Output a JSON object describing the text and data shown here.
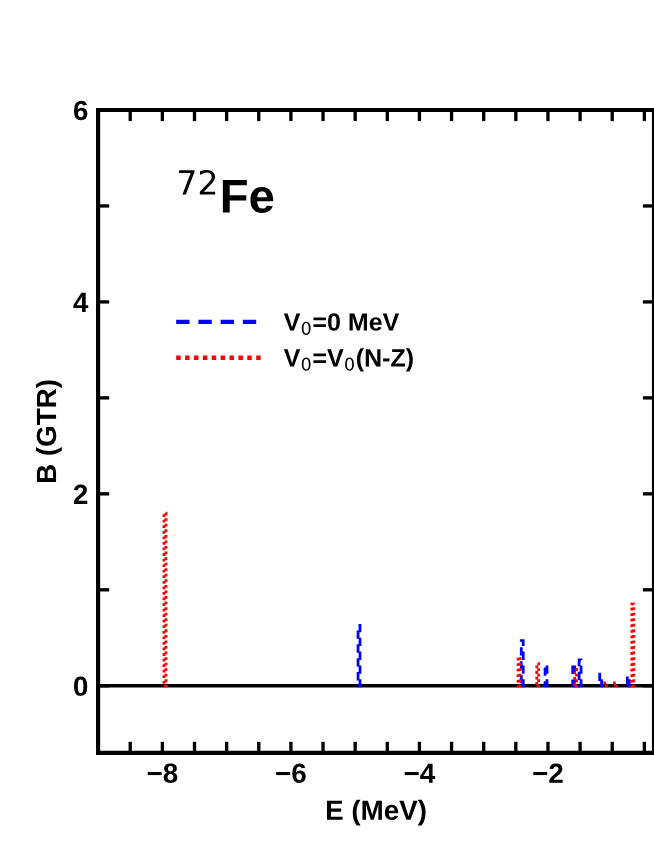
{
  "chart_data": {
    "type": "bar",
    "xlabel": "E (MeV)",
    "ylabel": "B (GTR)",
    "annotations": [
      "$^{72}$Fe"
    ],
    "xlim": [
      -9,
      -0.35
    ],
    "ylim": [
      -0.7,
      6
    ],
    "xticks": [
      {
        "value": -8.5,
        "label": null
      },
      -8,
      {
        "value": -7.5,
        "label": null
      },
      {
        "value": -7,
        "label": null
      },
      {
        "value": -6.5,
        "label": null
      },
      -6,
      {
        "value": -5.5,
        "label": null
      },
      {
        "value": -5,
        "label": null
      },
      {
        "value": -4.5,
        "label": null
      },
      -4,
      {
        "value": -3.5,
        "label": null
      },
      {
        "value": -3,
        "label": null
      },
      {
        "value": -2.5,
        "label": null
      },
      -2,
      {
        "value": -1.5,
        "label": null
      },
      {
        "value": -1,
        "label": null
      },
      {
        "value": -0.5,
        "label": null
      }
    ],
    "yticks": [
      0,
      {
        "value": 1,
        "label": null
      },
      2,
      {
        "value": 3,
        "label": null
      },
      4,
      {
        "value": 5,
        "label": null
      },
      6
    ],
    "series": [
      {
        "name": "V$_{0}$=0 MeV",
        "color": "#0000ff",
        "line_style": "dashed",
        "x": [
          -4.94,
          -2.4,
          -2.03,
          -1.6,
          -1.5,
          -1.18,
          -0.75
        ],
        "values": [
          0.63,
          0.47,
          0.22,
          0.23,
          0.27,
          0.12,
          0.1
        ]
      },
      {
        "name": "V$_{0}$=V$_{0}$(N-Z)",
        "color": "#ff0000",
        "line_style": "dotted",
        "x": [
          -7.96,
          -2.45,
          -2.16,
          -1.57,
          -1.1,
          -0.95,
          -0.68
        ],
        "values": [
          1.8,
          0.3,
          0.23,
          0.17,
          0.03,
          0.03,
          0.85
        ]
      }
    ],
    "ref_lines": [
      {
        "axis": "y",
        "value": 0,
        "color": "#000000"
      }
    ],
    "legend": "top left",
    "grid": false
  }
}
